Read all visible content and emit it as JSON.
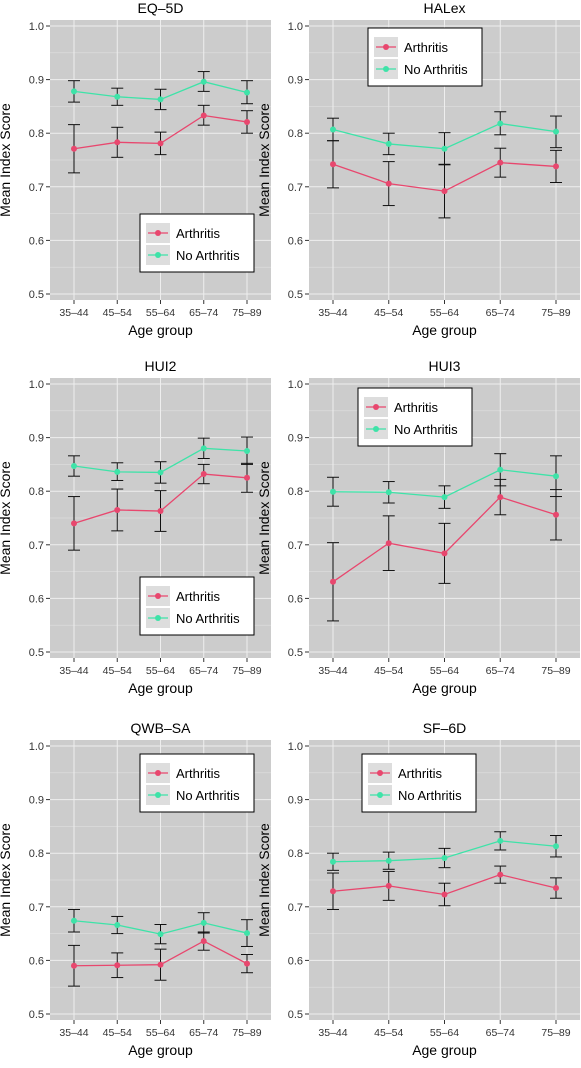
{
  "colors": {
    "arthritis": "#e8476e",
    "no_arthritis": "#3ee3a8",
    "panel_bg": "#cccccc",
    "grid": "#eeeeee",
    "error_bar": "#111111"
  },
  "chart_data": [
    {
      "type": "line",
      "title": "EQ–5D",
      "xlabel": "Age group",
      "ylabel": "Mean Index Score",
      "ylim": [
        0.5,
        1.0
      ],
      "yticks": [
        "0.5",
        "0.6",
        "0.7",
        "0.8",
        "0.9",
        "1.0"
      ],
      "grid": true,
      "legend_position": "bottom-right",
      "categories": [
        "35–44",
        "45–54",
        "55–64",
        "65–74",
        "75–89"
      ],
      "series": [
        {
          "name": "Arthritis",
          "color_key": "arthritis",
          "values": [
            0.771,
            0.783,
            0.781,
            0.833,
            0.821
          ],
          "lower": [
            0.726,
            0.755,
            0.76,
            0.815,
            0.8
          ],
          "upper": [
            0.816,
            0.811,
            0.802,
            0.852,
            0.842
          ]
        },
        {
          "name": "No Arthritis",
          "color_key": "no_arthritis",
          "values": [
            0.878,
            0.868,
            0.863,
            0.896,
            0.876
          ],
          "lower": [
            0.858,
            0.852,
            0.844,
            0.878,
            0.855
          ],
          "upper": [
            0.898,
            0.884,
            0.882,
            0.915,
            0.898
          ]
        }
      ]
    },
    {
      "type": "line",
      "title": "HALex",
      "xlabel": "Age group",
      "ylabel": "Mean Index Score",
      "ylim": [
        0.5,
        1.0
      ],
      "yticks": [
        "0.5",
        "0.6",
        "0.7",
        "0.8",
        "0.9",
        "1.0"
      ],
      "grid": true,
      "legend_position": "top-left",
      "categories": [
        "35–44",
        "45–54",
        "55–64",
        "65–74",
        "75–89"
      ],
      "series": [
        {
          "name": "Arthritis",
          "color_key": "arthritis",
          "values": [
            0.742,
            0.706,
            0.692,
            0.745,
            0.738
          ],
          "lower": [
            0.698,
            0.665,
            0.642,
            0.718,
            0.708
          ],
          "upper": [
            0.786,
            0.747,
            0.742,
            0.772,
            0.768
          ]
        },
        {
          "name": "No Arthritis",
          "color_key": "no_arthritis",
          "values": [
            0.807,
            0.78,
            0.771,
            0.818,
            0.803
          ],
          "lower": [
            0.786,
            0.76,
            0.741,
            0.797,
            0.773
          ],
          "upper": [
            0.828,
            0.8,
            0.801,
            0.84,
            0.832
          ]
        }
      ]
    },
    {
      "type": "line",
      "title": "HUI2",
      "xlabel": "Age group",
      "ylabel": "Mean Index Score",
      "ylim": [
        0.5,
        1.0
      ],
      "yticks": [
        "0.5",
        "0.6",
        "0.7",
        "0.8",
        "0.9",
        "1.0"
      ],
      "grid": true,
      "legend_position": "bottom-right",
      "categories": [
        "35–44",
        "45–54",
        "55–64",
        "65–74",
        "75–89"
      ],
      "series": [
        {
          "name": "Arthritis",
          "color_key": "arthritis",
          "values": [
            0.74,
            0.765,
            0.763,
            0.832,
            0.825
          ],
          "lower": [
            0.69,
            0.726,
            0.725,
            0.814,
            0.798
          ],
          "upper": [
            0.79,
            0.804,
            0.801,
            0.85,
            0.852
          ]
        },
        {
          "name": "No Arthritis",
          "color_key": "no_arthritis",
          "values": [
            0.847,
            0.836,
            0.835,
            0.88,
            0.875
          ],
          "lower": [
            0.828,
            0.82,
            0.815,
            0.861,
            0.85
          ],
          "upper": [
            0.866,
            0.853,
            0.855,
            0.899,
            0.901
          ]
        }
      ]
    },
    {
      "type": "line",
      "title": "HUI3",
      "xlabel": "Age group",
      "ylabel": "Mean Index Score",
      "ylim": [
        0.5,
        1.0
      ],
      "yticks": [
        "0.5",
        "0.6",
        "0.7",
        "0.8",
        "0.9",
        "1.0"
      ],
      "grid": true,
      "legend_position": "top-left",
      "categories": [
        "35–44",
        "45–54",
        "55–64",
        "65–74",
        "75–89"
      ],
      "series": [
        {
          "name": "Arthritis",
          "color_key": "arthritis",
          "values": [
            0.631,
            0.703,
            0.684,
            0.789,
            0.756
          ],
          "lower": [
            0.558,
            0.652,
            0.628,
            0.756,
            0.709
          ],
          "upper": [
            0.704,
            0.754,
            0.74,
            0.822,
            0.803
          ]
        },
        {
          "name": "No Arthritis",
          "color_key": "no_arthritis",
          "values": [
            0.799,
            0.798,
            0.789,
            0.84,
            0.828
          ],
          "lower": [
            0.772,
            0.778,
            0.768,
            0.81,
            0.79
          ],
          "upper": [
            0.826,
            0.818,
            0.81,
            0.87,
            0.866
          ]
        }
      ]
    },
    {
      "type": "line",
      "title": "QWB–SA",
      "xlabel": "Age group",
      "ylabel": "Mean Index Score",
      "ylim": [
        0.5,
        1.0
      ],
      "yticks": [
        "0.5",
        "0.6",
        "0.7",
        "0.8",
        "0.9",
        "1.0"
      ],
      "grid": true,
      "legend_position": "top-right",
      "categories": [
        "35–44",
        "45–54",
        "55–64",
        "65–74",
        "75–89"
      ],
      "series": [
        {
          "name": "Arthritis",
          "color_key": "arthritis",
          "values": [
            0.59,
            0.591,
            0.592,
            0.636,
            0.594
          ],
          "lower": [
            0.552,
            0.568,
            0.563,
            0.619,
            0.577
          ],
          "upper": [
            0.628,
            0.614,
            0.621,
            0.653,
            0.611
          ]
        },
        {
          "name": "No Arthritis",
          "color_key": "no_arthritis",
          "values": [
            0.674,
            0.666,
            0.649,
            0.67,
            0.651
          ],
          "lower": [
            0.653,
            0.65,
            0.631,
            0.651,
            0.626
          ],
          "upper": [
            0.695,
            0.682,
            0.667,
            0.689,
            0.676
          ]
        }
      ]
    },
    {
      "type": "line",
      "title": "SF–6D",
      "xlabel": "Age group",
      "ylabel": "Mean Index Score",
      "ylim": [
        0.5,
        1.0
      ],
      "yticks": [
        "0.5",
        "0.6",
        "0.7",
        "0.8",
        "0.9",
        "1.0"
      ],
      "grid": true,
      "legend_position": "top-right",
      "categories": [
        "35–44",
        "45–54",
        "55–64",
        "65–74",
        "75–89"
      ],
      "series": [
        {
          "name": "Arthritis",
          "color_key": "arthritis",
          "values": [
            0.729,
            0.739,
            0.723,
            0.76,
            0.735
          ],
          "lower": [
            0.695,
            0.712,
            0.702,
            0.744,
            0.716
          ],
          "upper": [
            0.763,
            0.766,
            0.744,
            0.776,
            0.754
          ]
        },
        {
          "name": "No Arthritis",
          "color_key": "no_arthritis",
          "values": [
            0.784,
            0.786,
            0.791,
            0.823,
            0.813
          ],
          "lower": [
            0.768,
            0.77,
            0.773,
            0.806,
            0.793
          ],
          "upper": [
            0.8,
            0.802,
            0.809,
            0.84,
            0.833
          ]
        }
      ]
    }
  ]
}
